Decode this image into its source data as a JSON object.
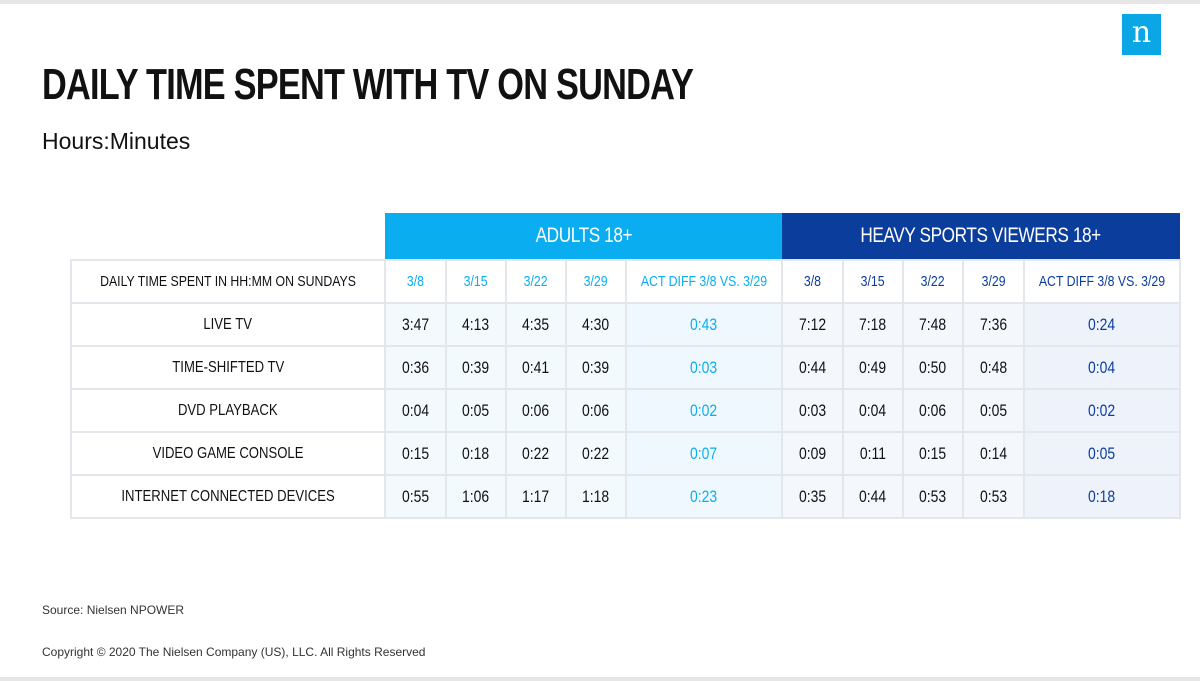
{
  "logo": "n",
  "title": "DAILY TIME SPENT WITH TV ON SUNDAY",
  "subtitle": "Hours:Minutes",
  "colors": {
    "adults": "#0aaef0",
    "sports": "#0b3d9c"
  },
  "table": {
    "groups": {
      "adults": "ADULTS 18+",
      "sports": "HEAVY SPORTS VIEWERS 18+"
    },
    "row_header": "DAILY TIME SPENT IN HH:MM ON SUNDAYS",
    "columns": [
      "3/8",
      "3/15",
      "3/22",
      "3/29",
      "ACT DIFF 3/8 VS. 3/29"
    ],
    "rows": [
      {
        "label": "LIVE TV",
        "adults": [
          "3:47",
          "4:13",
          "4:35",
          "4:30",
          "0:43"
        ],
        "sports": [
          "7:12",
          "7:18",
          "7:48",
          "7:36",
          "0:24"
        ]
      },
      {
        "label": "TIME-SHIFTED TV",
        "adults": [
          "0:36",
          "0:39",
          "0:41",
          "0:39",
          "0:03"
        ],
        "sports": [
          "0:44",
          "0:49",
          "0:50",
          "0:48",
          "0:04"
        ]
      },
      {
        "label": "DVD PLAYBACK",
        "adults": [
          "0:04",
          "0:05",
          "0:06",
          "0:06",
          "0:02"
        ],
        "sports": [
          "0:03",
          "0:04",
          "0:06",
          "0:05",
          "0:02"
        ]
      },
      {
        "label": "VIDEO GAME CONSOLE",
        "adults": [
          "0:15",
          "0:18",
          "0:22",
          "0:22",
          "0:07"
        ],
        "sports": [
          "0:09",
          "0:11",
          "0:15",
          "0:14",
          "0:05"
        ]
      },
      {
        "label": "INTERNET CONNECTED DEVICES",
        "adults": [
          "0:55",
          "1:06",
          "1:17",
          "1:18",
          "0:23"
        ],
        "sports": [
          "0:35",
          "0:44",
          "0:53",
          "0:53",
          "0:18"
        ]
      }
    ]
  },
  "source": "Source: Nielsen NPOWER",
  "copyright": "Copyright © 2020 The Nielsen Company (US), LLC. All Rights Reserved"
}
